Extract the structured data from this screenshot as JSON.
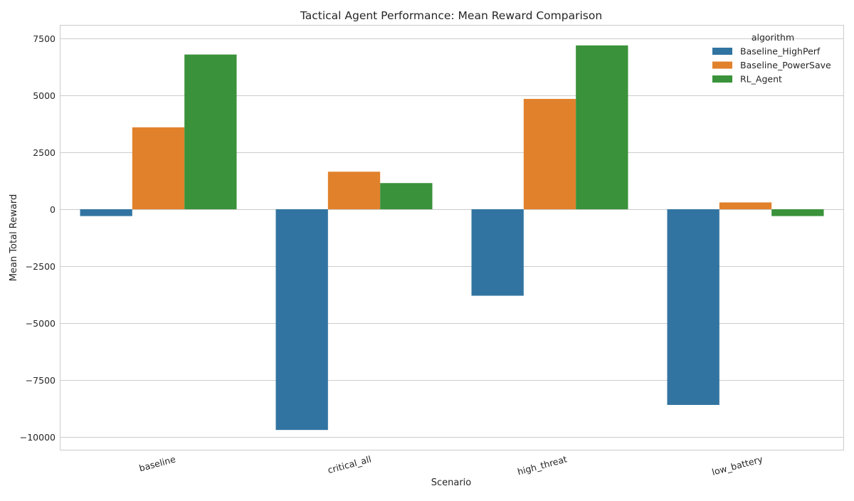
{
  "chart_data": {
    "type": "bar",
    "title": "Tactical Agent Performance: Mean Reward Comparison",
    "xlabel": "Scenario",
    "ylabel": "Mean Total Reward",
    "categories": [
      "baseline",
      "critical_all",
      "high_threat",
      "low_battery"
    ],
    "series": [
      {
        "name": "Baseline_HighPerf",
        "color": "#3274a1",
        "values": [
          -300,
          -9700,
          -3800,
          -8600
        ]
      },
      {
        "name": "Baseline_PowerSave",
        "color": "#e1812c",
        "values": [
          3600,
          1650,
          4850,
          300
        ]
      },
      {
        "name": "RL_Agent",
        "color": "#3a923a",
        "values": [
          6800,
          1150,
          7200,
          -300
        ]
      }
    ],
    "ylim": [
      -10570,
      8070
    ],
    "yticks": [
      7500,
      5000,
      2500,
      0,
      -2500,
      -5000,
      -7500,
      -10000
    ],
    "ytick_labels": [
      "7500",
      "5000",
      "2500",
      "0",
      "−2500",
      "−5000",
      "−7500",
      "−10000"
    ],
    "legend": {
      "title": "algorithm",
      "position": "top-right"
    },
    "grid": true
  }
}
